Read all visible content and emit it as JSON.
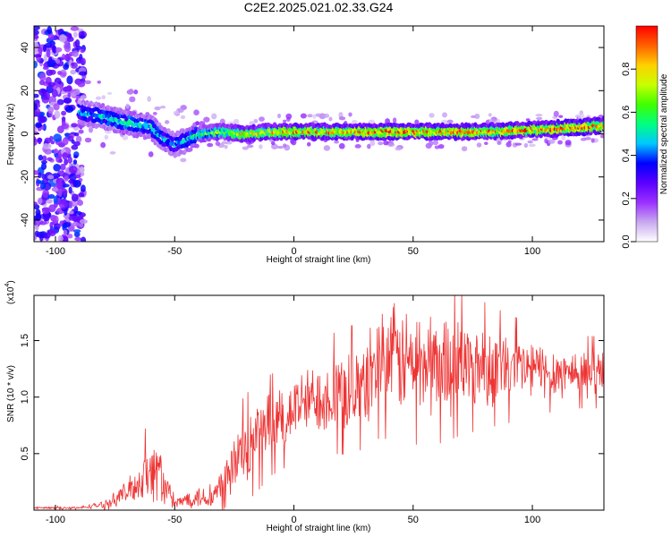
{
  "title": "C2E2.2025.021.02.33.G24",
  "chart_data": [
    {
      "type": "heatmap",
      "panel": "spectrogram",
      "xlabel": "Height of straight line (km)",
      "ylabel": "Frequency (Hz)",
      "xlim": [
        -109,
        130
      ],
      "ylim": [
        -50,
        50
      ],
      "xticks": [
        -100,
        -50,
        0,
        50,
        100
      ],
      "yticks": [
        -40,
        -20,
        0,
        20,
        40
      ],
      "colorbar": {
        "label": "Normalized spectral amplitude",
        "range": [
          0,
          1
        ],
        "ticks": [
          "0.0",
          "0.2",
          "0.4",
          "0.6",
          "0.8"
        ],
        "colormap": [
          "#ffffff",
          "#c8a8f0",
          "#9b30ff",
          "#5a00ff",
          "#0000ff",
          "#00c8ff",
          "#00ff80",
          "#40ff00",
          "#c8ff00",
          "#ffd000",
          "#ff6000",
          "#ff0000"
        ]
      },
      "noise_region_x": [
        -109,
        -88
      ],
      "ridge": {
        "x": [
          -90,
          -80,
          -70,
          -60,
          -55,
          -50,
          -45,
          -40,
          -30,
          -20,
          -10,
          0,
          20,
          40,
          60,
          80,
          100,
          120,
          130
        ],
        "frequency": [
          10,
          8,
          5,
          3,
          -2,
          -5,
          -3,
          0,
          1,
          0,
          1,
          1,
          1,
          1,
          1,
          1,
          2,
          3,
          4
        ],
        "amplitude": [
          0.45,
          0.5,
          0.55,
          0.5,
          0.5,
          0.45,
          0.5,
          0.6,
          0.7,
          0.85,
          0.85,
          0.9,
          0.9,
          1.0,
          0.95,
          0.9,
          0.95,
          1.0,
          0.9
        ]
      }
    },
    {
      "type": "line",
      "panel": "snr",
      "xlabel": "Height of straight line (km)",
      "ylabel": "SNR (10 * v/v)",
      "multiplier": "(x10",
      "multiplier_exp": "4",
      "xlim": [
        -109,
        130
      ],
      "ylim": [
        0,
        1.9
      ],
      "xticks": [
        -100,
        -50,
        0,
        50,
        100
      ],
      "yticks": [
        "0.5",
        "1.0",
        "1.5"
      ],
      "ytick_values": [
        0.5,
        1.0,
        1.5
      ],
      "color": "#ee3333",
      "envelope": {
        "x": [
          -109,
          -90,
          -80,
          -75,
          -70,
          -65,
          -62,
          -60,
          -57,
          -55,
          -52,
          -50,
          -45,
          -40,
          -35,
          -30,
          -27,
          -25,
          -20,
          -15,
          -10,
          -5,
          0,
          5,
          10,
          20,
          30,
          35,
          40,
          50,
          60,
          70,
          80,
          90,
          100,
          110,
          120,
          130
        ],
        "mean": [
          0.02,
          0.02,
          0.05,
          0.1,
          0.16,
          0.24,
          0.35,
          0.3,
          0.4,
          0.25,
          0.12,
          0.05,
          0.1,
          0.12,
          0.1,
          0.22,
          0.3,
          0.4,
          0.55,
          0.65,
          0.75,
          0.8,
          0.9,
          0.95,
          1.0,
          1.05,
          1.1,
          1.35,
          1.35,
          1.3,
          1.3,
          1.3,
          1.28,
          1.25,
          1.25,
          1.22,
          1.22,
          1.22
        ],
        "spread": [
          0.01,
          0.01,
          0.03,
          0.06,
          0.1,
          0.15,
          0.25,
          0.25,
          0.3,
          0.2,
          0.1,
          0.04,
          0.07,
          0.1,
          0.08,
          0.2,
          0.3,
          0.3,
          0.3,
          0.3,
          0.28,
          0.28,
          0.28,
          0.28,
          0.3,
          0.35,
          0.35,
          0.45,
          0.45,
          0.45,
          0.45,
          0.4,
          0.35,
          0.3,
          0.25,
          0.22,
          0.2,
          0.2
        ]
      }
    }
  ]
}
